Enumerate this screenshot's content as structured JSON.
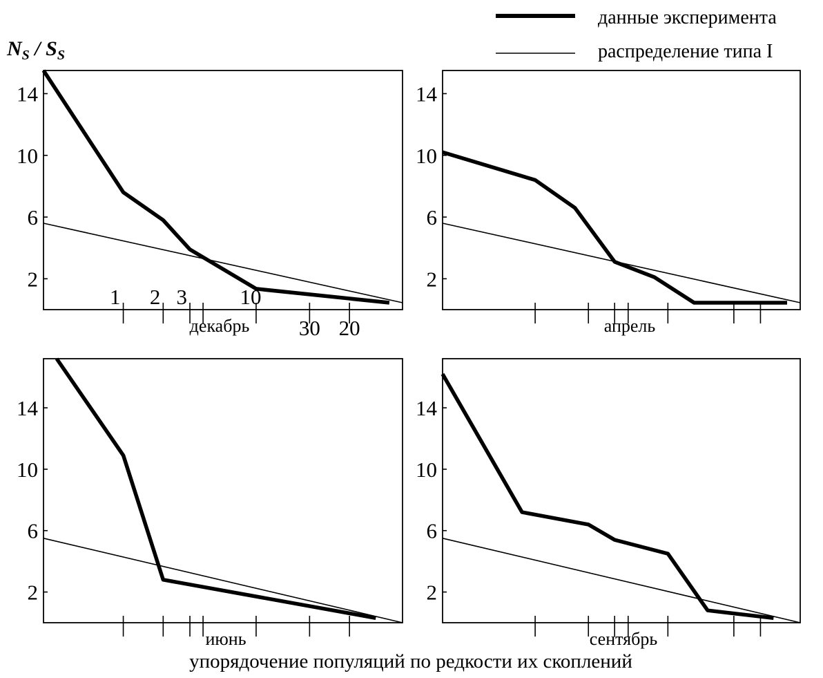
{
  "ylabel": "N_S / S_S",
  "xlabel": "упорядочение популяций по редкости их скоплений",
  "legend": {
    "placement": "top-right",
    "entries": [
      {
        "label": "данные эксперимента",
        "style": "thick"
      },
      {
        "label": "распределение типа I",
        "style": "thin"
      }
    ]
  },
  "chart_data": [
    {
      "type": "line",
      "panel": "top-left",
      "month": "декабрь",
      "x_tick_labels": [
        "1",
        "2",
        "3",
        "10",
        "20",
        "30"
      ],
      "x_tick_labels_positions": [
        1,
        2,
        3,
        5,
        7,
        8
      ],
      "y_ticks": [
        2,
        6,
        10,
        14
      ],
      "ylim": [
        0,
        15.5
      ],
      "xlim": [
        0,
        9
      ],
      "x_ticks": [
        2,
        3,
        3.67,
        4,
        5.33,
        6.67,
        7.67
      ],
      "series": [
        {
          "name": "данные эксперимента",
          "style": "thick",
          "x": [
            0,
            2,
            3,
            3.67,
            5.33,
            8.67
          ],
          "y": [
            15.5,
            7.6,
            5.8,
            3.9,
            1.35,
            0.45
          ]
        },
        {
          "name": "распределение типа I",
          "style": "thin",
          "x": [
            0,
            9
          ],
          "y": [
            5.6,
            0.45
          ]
        }
      ]
    },
    {
      "type": "line",
      "panel": "top-right",
      "month": "апрель",
      "y_ticks": [
        2,
        6,
        10,
        14
      ],
      "ylim": [
        0,
        15.5
      ],
      "xlim": [
        0,
        9
      ],
      "x_ticks": [
        2.33,
        3.67,
        4.33,
        4.67,
        5.67,
        7.33,
        8
      ],
      "series": [
        {
          "name": "данные эксперимента",
          "style": "thick",
          "x": [
            0,
            2.33,
            3.33,
            4.33,
            5.33,
            6.33,
            8.67
          ],
          "y": [
            10.2,
            8.4,
            6.6,
            3.1,
            2.1,
            0.45,
            0.45
          ]
        },
        {
          "name": "распределение типа I",
          "style": "thin",
          "x": [
            0,
            9
          ],
          "y": [
            5.6,
            0.45
          ]
        }
      ]
    },
    {
      "type": "line",
      "panel": "bottom-left",
      "month": "июнь",
      "y_ticks": [
        2,
        6,
        10,
        14
      ],
      "ylim": [
        0,
        17.2
      ],
      "xlim": [
        0,
        9
      ],
      "x_ticks": [
        2,
        3,
        3.67,
        4,
        5.33,
        6.67,
        7.67
      ],
      "series": [
        {
          "name": "данные эксперимента",
          "style": "thick",
          "x": [
            0.33,
            2,
            3,
            8.33
          ],
          "y": [
            17.2,
            10.9,
            2.8,
            0.3
          ]
        },
        {
          "name": "распределение типа I",
          "style": "thin",
          "x": [
            0,
            9
          ],
          "y": [
            5.5,
            0
          ]
        }
      ]
    },
    {
      "type": "line",
      "panel": "bottom-right",
      "month": "сентябрь",
      "y_ticks": [
        2,
        6,
        10,
        14
      ],
      "ylim": [
        0,
        17.2
      ],
      "xlim": [
        0,
        9
      ],
      "x_ticks": [
        2.33,
        3.67,
        4.33,
        4.67,
        5.67,
        7.33,
        8
      ],
      "series": [
        {
          "name": "данные эксперимента",
          "style": "thick",
          "x": [
            0,
            2,
            3.67,
            4.33,
            5.67,
            6.67,
            8.33
          ],
          "y": [
            16.2,
            7.2,
            6.4,
            5.4,
            4.5,
            0.8,
            0.3
          ]
        },
        {
          "name": "распределение типа I",
          "style": "thin",
          "x": [
            0,
            9
          ],
          "y": [
            5.5,
            0
          ]
        }
      ]
    }
  ]
}
